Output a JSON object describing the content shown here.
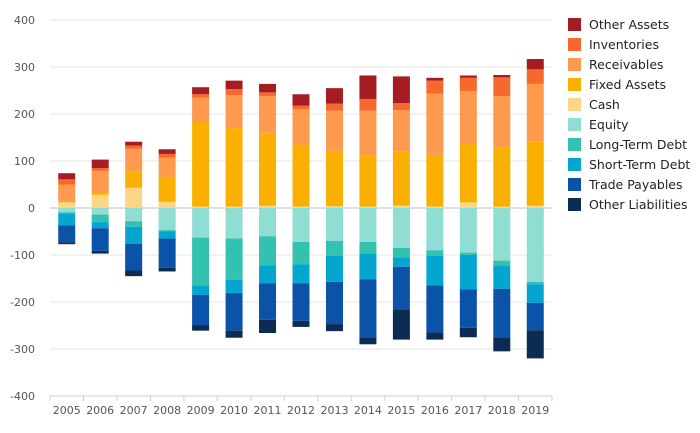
{
  "chart_data": {
    "type": "bar",
    "stacked": true,
    "title": "",
    "xlabel": "",
    "ylabel": "",
    "ylim": [
      -400,
      400
    ],
    "yticks": [
      -400,
      -300,
      -200,
      -100,
      0,
      100,
      200,
      300,
      400
    ],
    "grid": true,
    "legend_position": "right",
    "categories": [
      "2005",
      "2006",
      "2007",
      "2008",
      "2009",
      "2010",
      "2011",
      "2012",
      "2013",
      "2014",
      "2015",
      "2016",
      "2017",
      "2018",
      "2019"
    ],
    "series": [
      {
        "name": "Other Assets",
        "color": "#a51c22",
        "sign": "positive",
        "values": [
          13,
          18,
          8,
          10,
          15,
          18,
          18,
          24,
          33,
          50,
          57,
          6,
          5,
          5,
          22
        ]
      },
      {
        "name": "Inventories",
        "color": "#f7682d",
        "sign": "positive",
        "values": [
          11,
          6,
          7,
          8,
          7,
          13,
          8,
          8,
          15,
          25,
          15,
          28,
          28,
          40,
          31
        ]
      },
      {
        "name": "Receivables",
        "color": "#fd9a4d",
        "sign": "positive",
        "values": [
          35,
          46,
          48,
          42,
          52,
          70,
          78,
          75,
          85,
          96,
          87,
          130,
          113,
          110,
          122
        ]
      },
      {
        "name": "Fixed Assets",
        "color": "#f9b000",
        "sign": "positive",
        "values": [
          3,
          5,
          35,
          52,
          180,
          167,
          155,
          132,
          118,
          108,
          116,
          110,
          124,
          125,
          137
        ]
      },
      {
        "name": "Cash",
        "color": "#fdd586",
        "sign": "positive",
        "values": [
          12,
          28,
          43,
          13,
          3,
          3,
          5,
          3,
          4,
          3,
          5,
          3,
          12,
          3,
          5
        ]
      },
      {
        "name": "Equity",
        "color": "#8fddd3",
        "sign": "negative",
        "values": [
          -9,
          -14,
          -28,
          -47,
          -63,
          -65,
          -60,
          -72,
          -70,
          -72,
          -85,
          -90,
          -95,
          -112,
          -157
        ]
      },
      {
        "name": "Long-Term Debt",
        "color": "#33c1b0",
        "sign": "negative",
        "values": [
          -3,
          -16,
          -12,
          -3,
          -102,
          -88,
          -62,
          -48,
          -32,
          -25,
          -20,
          -12,
          -5,
          -10,
          -5
        ]
      },
      {
        "name": "Short-Term Debt",
        "color": "#04a6d0",
        "sign": "negative",
        "values": [
          -25,
          -13,
          -36,
          -15,
          -20,
          -28,
          -38,
          -40,
          -55,
          -55,
          -20,
          -63,
          -73,
          -50,
          -40
        ]
      },
      {
        "name": "Trade Payables",
        "color": "#0b53a8",
        "sign": "negative",
        "values": [
          -36,
          -48,
          -57,
          -62,
          -64,
          -80,
          -78,
          -80,
          -90,
          -123,
          -92,
          -100,
          -82,
          -103,
          -58
        ]
      },
      {
        "name": "Other Liabilities",
        "color": "#0d2c54",
        "sign": "negative",
        "values": [
          -4,
          -6,
          -12,
          -8,
          -12,
          -15,
          -28,
          -13,
          -15,
          -15,
          -63,
          -15,
          -20,
          -30,
          -60
        ]
      }
    ]
  }
}
